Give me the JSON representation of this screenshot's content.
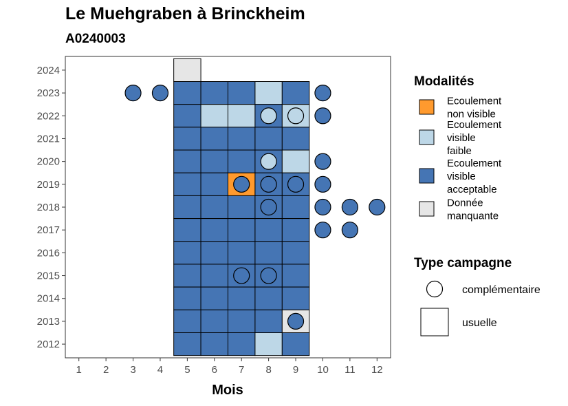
{
  "chart_data": {
    "type": "heatmap",
    "title": "Le Muehgraben à Brinckheim",
    "subtitle": "A0240003",
    "xlabel": "Mois",
    "ylabel": "",
    "x_ticks": [
      1,
      2,
      3,
      4,
      5,
      6,
      7,
      8,
      9,
      10,
      11,
      12
    ],
    "y_ticks": [
      2012,
      2013,
      2014,
      2015,
      2016,
      2017,
      2018,
      2019,
      2020,
      2021,
      2022,
      2023,
      2024
    ],
    "xlim": [
      0.5,
      12.5
    ],
    "ylim": [
      2011.4,
      2024.6
    ],
    "grid": false,
    "modalites": [
      {
        "key": "nv",
        "label_lines": [
          "Ecoulement",
          "non visible"
        ],
        "color": "#FF9A2E"
      },
      {
        "key": "vf",
        "label_lines": [
          "Ecoulement",
          "visible",
          "faible"
        ],
        "color": "#BDD7E7"
      },
      {
        "key": "va",
        "label_lines": [
          "Ecoulement",
          "visible",
          "acceptable"
        ],
        "color": "#4575B4"
      },
      {
        "key": "dm",
        "label_lines": [
          "Donnée",
          "manquante"
        ],
        "color": "#E6E6E6"
      }
    ],
    "legend_modalites_title": "Modalités",
    "legend_campagne_title": "Type campagne",
    "campagne_types": [
      {
        "key": "complementaire",
        "label": "complémentaire",
        "shape": "circle"
      },
      {
        "key": "usuelle",
        "label": "usuelle",
        "shape": "square"
      }
    ],
    "usuelle": [
      {
        "year": 2024,
        "months": [
          5
        ],
        "values": [
          "dm"
        ]
      },
      {
        "year": 2023,
        "months": [
          5,
          6,
          7,
          8,
          9
        ],
        "values": [
          "va",
          "va",
          "va",
          "vf",
          "va"
        ]
      },
      {
        "year": 2022,
        "months": [
          5,
          6,
          7,
          8,
          9
        ],
        "values": [
          "va",
          "vf",
          "vf",
          "va",
          "vf"
        ]
      },
      {
        "year": 2021,
        "months": [
          5,
          6,
          7,
          8,
          9
        ],
        "values": [
          "va",
          "va",
          "va",
          "va",
          "va"
        ]
      },
      {
        "year": 2020,
        "months": [
          5,
          6,
          7,
          8,
          9
        ],
        "values": [
          "va",
          "va",
          "va",
          "va",
          "vf"
        ]
      },
      {
        "year": 2019,
        "months": [
          5,
          6,
          7,
          8,
          9
        ],
        "values": [
          "va",
          "va",
          "nv",
          "va",
          "va"
        ]
      },
      {
        "year": 2018,
        "months": [
          5,
          6,
          7,
          8,
          9
        ],
        "values": [
          "va",
          "va",
          "va",
          "va",
          "va"
        ]
      },
      {
        "year": 2017,
        "months": [
          5,
          6,
          7,
          8,
          9
        ],
        "values": [
          "va",
          "va",
          "va",
          "va",
          "va"
        ]
      },
      {
        "year": 2016,
        "months": [
          5,
          6,
          7,
          8,
          9
        ],
        "values": [
          "va",
          "va",
          "va",
          "va",
          "va"
        ]
      },
      {
        "year": 2015,
        "months": [
          5,
          6,
          7,
          8,
          9
        ],
        "values": [
          "va",
          "va",
          "va",
          "va",
          "va"
        ]
      },
      {
        "year": 2014,
        "months": [
          5,
          6,
          7,
          8,
          9
        ],
        "values": [
          "va",
          "va",
          "va",
          "va",
          "va"
        ]
      },
      {
        "year": 2013,
        "months": [
          5,
          6,
          7,
          8,
          9
        ],
        "values": [
          "va",
          "va",
          "va",
          "va",
          "dm"
        ]
      },
      {
        "year": 2012,
        "months": [
          5,
          6,
          7,
          8,
          9
        ],
        "values": [
          "va",
          "va",
          "va",
          "vf",
          "va"
        ]
      }
    ],
    "complementaire": [
      {
        "year": 2023,
        "month": 3,
        "value": "va"
      },
      {
        "year": 2023,
        "month": 4,
        "value": "va"
      },
      {
        "year": 2023,
        "month": 10,
        "value": "va"
      },
      {
        "year": 2022,
        "month": 8,
        "value": "vf"
      },
      {
        "year": 2022,
        "month": 9,
        "value": "vf"
      },
      {
        "year": 2022,
        "month": 10,
        "value": "va"
      },
      {
        "year": 2020,
        "month": 8,
        "value": "vf"
      },
      {
        "year": 2020,
        "month": 10,
        "value": "va"
      },
      {
        "year": 2019,
        "month": 7,
        "value": "va"
      },
      {
        "year": 2019,
        "month": 8,
        "value": "va"
      },
      {
        "year": 2019,
        "month": 9,
        "value": "va"
      },
      {
        "year": 2019,
        "month": 10,
        "value": "va"
      },
      {
        "year": 2018,
        "month": 8,
        "value": "va"
      },
      {
        "year": 2018,
        "month": 10,
        "value": "va"
      },
      {
        "year": 2018,
        "month": 11,
        "value": "va"
      },
      {
        "year": 2018,
        "month": 12,
        "value": "va"
      },
      {
        "year": 2017,
        "month": 10,
        "value": "va"
      },
      {
        "year": 2017,
        "month": 11,
        "value": "va"
      },
      {
        "year": 2015,
        "month": 7,
        "value": "va"
      },
      {
        "year": 2015,
        "month": 8,
        "value": "va"
      },
      {
        "year": 2013,
        "month": 9,
        "value": "va"
      }
    ]
  }
}
